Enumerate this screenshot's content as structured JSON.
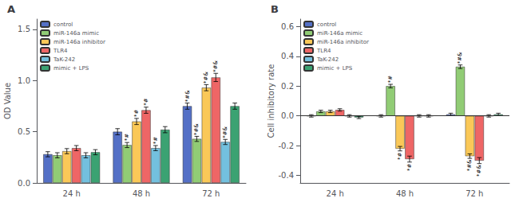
{
  "chart_data": [
    {
      "type": "bar",
      "title": "A",
      "ylabel": "OD Value",
      "categories": [
        "24 h",
        "48 h",
        "72 h"
      ],
      "ylim": [
        0,
        1.6
      ],
      "yticks": [
        {
          "value": 0,
          "label": "0.0"
        },
        0.5,
        {
          "value": 1,
          "label": "1.0"
        },
        1.5
      ],
      "grid": false,
      "legend": "upper left",
      "series": [
        {
          "name": "control",
          "values": [
            0.28,
            0.5,
            0.75
          ],
          "errors": [
            0.025,
            0.03,
            0.03
          ],
          "annotations": [
            null,
            null,
            "*#&"
          ]
        },
        {
          "name": "miR-146a mimic",
          "values": [
            0.27,
            0.37,
            0.43
          ],
          "errors": [
            0.025,
            0.025,
            0.025
          ],
          "annotations": [
            null,
            "*#",
            "*#&"
          ]
        },
        {
          "name": "miR-146a inhibitor",
          "values": [
            0.31,
            0.6,
            0.93
          ],
          "errors": [
            0.025,
            0.03,
            0.03
          ],
          "annotations": [
            null,
            "*#",
            "*#&"
          ]
        },
        {
          "name": "TLR4",
          "values": [
            0.34,
            0.71,
            1.03
          ],
          "errors": [
            0.025,
            0.03,
            0.04
          ],
          "annotations": [
            null,
            "*#",
            "*#&"
          ]
        },
        {
          "name": "TaK-242",
          "values": [
            0.27,
            0.34,
            0.4
          ],
          "errors": [
            0.025,
            0.025,
            0.025
          ],
          "annotations": [
            null,
            "*#",
            "*#&"
          ]
        },
        {
          "name": "mimic + LPS",
          "values": [
            0.3,
            0.52,
            0.75
          ],
          "errors": [
            0.025,
            0.03,
            0.03
          ],
          "annotations": [
            null,
            null,
            null
          ]
        }
      ]
    },
    {
      "type": "bar",
      "title": "B",
      "ylabel": "Cell inhibitory rate",
      "categories": [
        "24 h",
        "48 h",
        "72 h"
      ],
      "ylim": [
        -0.45,
        0.65
      ],
      "yticks": [
        -0.4,
        -0.2,
        {
          "value": 0,
          "label": "0.0"
        },
        0.2,
        0.4,
        0.6
      ],
      "grid": false,
      "legend": "upper left",
      "series": [
        {
          "name": "control",
          "values": [
            0.0,
            0.0,
            0.01
          ],
          "errors": [
            0.008,
            0.008,
            0.008
          ],
          "annotations": [
            null,
            null,
            null
          ]
        },
        {
          "name": "miR-146a mimic",
          "values": [
            0.03,
            0.2,
            0.33
          ],
          "errors": [
            0.008,
            0.012,
            0.012
          ],
          "annotations": [
            null,
            "*#",
            "*#&"
          ]
        },
        {
          "name": "miR-146a inhibitor",
          "values": [
            0.03,
            -0.22,
            -0.27
          ],
          "errors": [
            0.008,
            0.015,
            0.015
          ],
          "annotations": [
            null,
            "*#",
            "*#&"
          ]
        },
        {
          "name": "TLR4",
          "values": [
            0.04,
            -0.29,
            -0.3
          ],
          "errors": [
            0.008,
            0.02,
            0.02
          ],
          "annotations": [
            null,
            "*#",
            "*#&"
          ]
        },
        {
          "name": "TaK-242",
          "values": [
            0.0,
            0.0,
            0.0
          ],
          "errors": [
            0.008,
            0.008,
            0.008
          ],
          "annotations": [
            null,
            null,
            null
          ]
        },
        {
          "name": "mimic + LPS",
          "values": [
            -0.01,
            0.0,
            0.01
          ],
          "errors": [
            0.008,
            0.008,
            0.008
          ],
          "annotations": [
            null,
            null,
            null
          ]
        }
      ]
    }
  ]
}
